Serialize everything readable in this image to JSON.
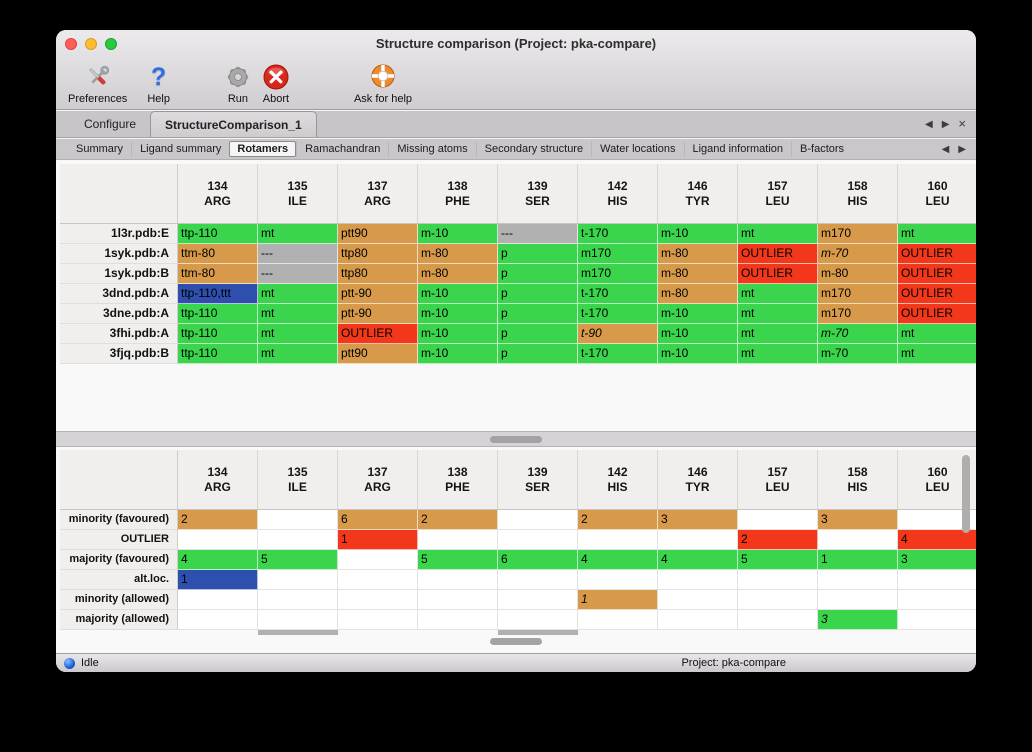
{
  "window": {
    "title": "Structure comparison (Project: pka-compare)",
    "toolbar": [
      {
        "label": "Preferences",
        "icon": "tools-icon"
      },
      {
        "label": "Help",
        "icon": "help-icon"
      },
      {
        "label": "Run",
        "icon": "gear-icon"
      },
      {
        "label": "Abort",
        "icon": "abort-icon"
      },
      {
        "label": "Ask for help",
        "icon": "lifebuoy-icon"
      }
    ],
    "tabs": [
      {
        "label": "Configure",
        "active": false
      },
      {
        "label": "StructureComparison_1",
        "active": true
      }
    ],
    "subtabs": [
      {
        "label": "Summary",
        "active": false
      },
      {
        "label": "Ligand summary",
        "active": false
      },
      {
        "label": "Rotamers",
        "active": true
      },
      {
        "label": "Ramachandran",
        "active": false
      },
      {
        "label": "Missing atoms",
        "active": false
      },
      {
        "label": "Secondary structure",
        "active": false
      },
      {
        "label": "Water locations",
        "active": false
      },
      {
        "label": "Ligand information",
        "active": false
      },
      {
        "label": "B-factors",
        "active": false
      }
    ]
  },
  "icons": {
    "prev": "◀",
    "next": "▶",
    "close": "×",
    "help_glyph": "?"
  },
  "colors": {
    "green": "#3bd54d",
    "orange": "#d79a4b",
    "red": "#f2371b",
    "gray": "#b1b1b1",
    "blue": "#2e4fae"
  },
  "columns": [
    {
      "num": "134",
      "name": "ARG"
    },
    {
      "num": "135",
      "name": "ILE"
    },
    {
      "num": "137",
      "name": "ARG"
    },
    {
      "num": "138",
      "name": "PHE"
    },
    {
      "num": "139",
      "name": "SER"
    },
    {
      "num": "142",
      "name": "HIS"
    },
    {
      "num": "146",
      "name": "TYR"
    },
    {
      "num": "157",
      "name": "LEU"
    },
    {
      "num": "158",
      "name": "HIS"
    },
    {
      "num": "160",
      "name": "LEU"
    }
  ],
  "structures_table": {
    "rows": [
      {
        "label": "1l3r.pdb:E",
        "cells": [
          {
            "t": "ttp-110",
            "c": "green"
          },
          {
            "t": "mt",
            "c": "green"
          },
          {
            "t": "ptt90",
            "c": "orange"
          },
          {
            "t": "m-10",
            "c": "green"
          },
          {
            "t": "---",
            "c": "gray"
          },
          {
            "t": "t-170",
            "c": "green"
          },
          {
            "t": "m-10",
            "c": "green"
          },
          {
            "t": "mt",
            "c": "green"
          },
          {
            "t": "m170",
            "c": "orange"
          },
          {
            "t": "mt",
            "c": "green"
          }
        ]
      },
      {
        "label": "1syk.pdb:A",
        "cells": [
          {
            "t": "ttm-80",
            "c": "orange"
          },
          {
            "t": "---",
            "c": "gray"
          },
          {
            "t": "ttp80",
            "c": "orange"
          },
          {
            "t": "m-80",
            "c": "orange"
          },
          {
            "t": "p",
            "c": "green"
          },
          {
            "t": "m170",
            "c": "green"
          },
          {
            "t": "m-80",
            "c": "orange"
          },
          {
            "t": "OUTLIER",
            "c": "red"
          },
          {
            "t": "m-70",
            "c": "orange",
            "i": true
          },
          {
            "t": "OUTLIER",
            "c": "red"
          }
        ]
      },
      {
        "label": "1syk.pdb:B",
        "cells": [
          {
            "t": "ttm-80",
            "c": "orange"
          },
          {
            "t": "---",
            "c": "gray"
          },
          {
            "t": "ttp80",
            "c": "orange"
          },
          {
            "t": "m-80",
            "c": "orange"
          },
          {
            "t": "p",
            "c": "green"
          },
          {
            "t": "m170",
            "c": "green"
          },
          {
            "t": "m-80",
            "c": "orange"
          },
          {
            "t": "OUTLIER",
            "c": "red"
          },
          {
            "t": "m-80",
            "c": "orange"
          },
          {
            "t": "OUTLIER",
            "c": "red"
          }
        ]
      },
      {
        "label": "3dnd.pdb:A",
        "cells": [
          {
            "t": "ttp-110,ttt",
            "c": "blue"
          },
          {
            "t": "mt",
            "c": "green"
          },
          {
            "t": "ptt-90",
            "c": "orange"
          },
          {
            "t": "m-10",
            "c": "green"
          },
          {
            "t": "p",
            "c": "green"
          },
          {
            "t": "t-170",
            "c": "green"
          },
          {
            "t": "m-80",
            "c": "orange"
          },
          {
            "t": "mt",
            "c": "green"
          },
          {
            "t": "m170",
            "c": "orange"
          },
          {
            "t": "OUTLIER",
            "c": "red"
          }
        ]
      },
      {
        "label": "3dne.pdb:A",
        "cells": [
          {
            "t": "ttp-110",
            "c": "green"
          },
          {
            "t": "mt",
            "c": "green"
          },
          {
            "t": "ptt-90",
            "c": "orange"
          },
          {
            "t": "m-10",
            "c": "green"
          },
          {
            "t": "p",
            "c": "green"
          },
          {
            "t": "t-170",
            "c": "green"
          },
          {
            "t": "m-10",
            "c": "green"
          },
          {
            "t": "mt",
            "c": "green"
          },
          {
            "t": "m170",
            "c": "orange"
          },
          {
            "t": "OUTLIER",
            "c": "red"
          }
        ]
      },
      {
        "label": "3fhi.pdb:A",
        "cells": [
          {
            "t": "ttp-110",
            "c": "green"
          },
          {
            "t": "mt",
            "c": "green"
          },
          {
            "t": "OUTLIER",
            "c": "red"
          },
          {
            "t": "m-10",
            "c": "green"
          },
          {
            "t": "p",
            "c": "green"
          },
          {
            "t": "t-90",
            "c": "orange",
            "i": true
          },
          {
            "t": "m-10",
            "c": "green"
          },
          {
            "t": "mt",
            "c": "green"
          },
          {
            "t": "m-70",
            "c": "green",
            "i": true
          },
          {
            "t": "mt",
            "c": "green"
          }
        ]
      },
      {
        "label": "3fjq.pdb:B",
        "cells": [
          {
            "t": "ttp-110",
            "c": "green"
          },
          {
            "t": "mt",
            "c": "green"
          },
          {
            "t": "ptt90",
            "c": "orange"
          },
          {
            "t": "m-10",
            "c": "green"
          },
          {
            "t": "p",
            "c": "green"
          },
          {
            "t": "t-170",
            "c": "green"
          },
          {
            "t": "m-10",
            "c": "green"
          },
          {
            "t": "mt",
            "c": "green"
          },
          {
            "t": "m-70",
            "c": "green"
          },
          {
            "t": "mt",
            "c": "green"
          }
        ]
      }
    ]
  },
  "summary_table": {
    "rows": [
      {
        "label": "minority (favoured)",
        "cells": [
          {
            "t": "2",
            "c": "orange"
          },
          null,
          {
            "t": "6",
            "c": "orange"
          },
          {
            "t": "2",
            "c": "orange"
          },
          null,
          {
            "t": "2",
            "c": "orange"
          },
          {
            "t": "3",
            "c": "orange"
          },
          null,
          {
            "t": "3",
            "c": "orange"
          },
          null
        ]
      },
      {
        "label": "OUTLIER",
        "cells": [
          null,
          null,
          {
            "t": "1",
            "c": "red"
          },
          null,
          null,
          null,
          null,
          {
            "t": "2",
            "c": "red"
          },
          null,
          {
            "t": "4",
            "c": "red"
          }
        ]
      },
      {
        "label": "majority (favoured)",
        "cells": [
          {
            "t": "4",
            "c": "green"
          },
          {
            "t": "5",
            "c": "green"
          },
          null,
          {
            "t": "5",
            "c": "green"
          },
          {
            "t": "6",
            "c": "green"
          },
          {
            "t": "4",
            "c": "green"
          },
          {
            "t": "4",
            "c": "green"
          },
          {
            "t": "5",
            "c": "green"
          },
          {
            "t": "1",
            "c": "green"
          },
          {
            "t": "3",
            "c": "green"
          }
        ]
      },
      {
        "label": "alt.loc.",
        "cells": [
          {
            "t": "1",
            "c": "blue"
          },
          null,
          null,
          null,
          null,
          null,
          null,
          null,
          null,
          null
        ]
      },
      {
        "label": "minority (allowed)",
        "cells": [
          null,
          null,
          null,
          null,
          null,
          {
            "t": "1",
            "c": "orange",
            "i": true
          },
          null,
          null,
          null,
          null
        ]
      },
      {
        "label": "majority (allowed)",
        "cells": [
          null,
          null,
          null,
          null,
          null,
          null,
          null,
          null,
          {
            "t": "3",
            "c": "green",
            "i": true
          },
          null
        ]
      }
    ]
  },
  "statusbar": {
    "status": "Idle",
    "project": "Project: pka-compare"
  }
}
